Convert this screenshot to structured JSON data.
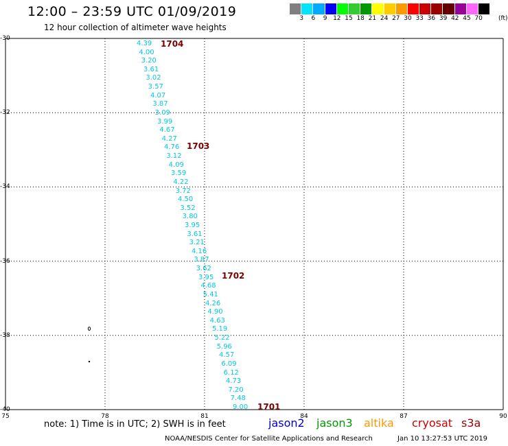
{
  "header": {
    "title": "12:00 – 23:59 UTC 01/09/2019",
    "subtitle": "12 hour collection of altimeter wave heights"
  },
  "colorbar": {
    "colors": [
      "#808080",
      "#00e5ff",
      "#00aaff",
      "#0000ff",
      "#00ff00",
      "#33cc33",
      "#009900",
      "#ffff00",
      "#ffcc00",
      "#ff9900",
      "#ff0000",
      "#cc0000",
      "#990000",
      "#660000",
      "#990099",
      "#ff66ff",
      "#000000"
    ],
    "labels": [
      "3",
      "6",
      "9",
      "12",
      "15",
      "18",
      "21",
      "24",
      "27",
      "30",
      "33",
      "36",
      "39",
      "42",
      "45",
      "70"
    ],
    "unit": "(ft)"
  },
  "axes": {
    "lat_ticks": [
      "-30",
      "-32",
      "-34",
      "-36",
      "-38",
      "-40"
    ],
    "lon_ticks": [
      "75",
      "78",
      "81",
      "84",
      "87",
      "90"
    ]
  },
  "map_data": {
    "lon_range": [
      75,
      90
    ],
    "lat_range": [
      -40,
      -30
    ],
    "swh_ft": [
      "4.39",
      "4.00",
      "3.20",
      "3.61",
      "3.02",
      "3.57",
      "4.07",
      "3.87",
      "3.09",
      "3.99",
      "4.67",
      "4.27",
      "4.76",
      "3.12",
      "4.09",
      "3.59",
      "4.22",
      "3.72",
      "4.50",
      "3.52",
      "3.80",
      "3.95",
      "3.61",
      "3.21",
      "4.16",
      "3.87",
      "3.62",
      "3.95",
      "4.68",
      "5.41",
      "4.26",
      "4.90",
      "4.63",
      "5.19",
      "5.22",
      "5.96",
      "4.57",
      "6.09",
      "6.12",
      "4.73",
      "7.20",
      "7.48",
      "9.00"
    ],
    "passes": [
      "1704",
      "1703",
      "1702",
      "1701"
    ]
  },
  "footer": {
    "note": "note:  1) Time is in UTC;  2) SWH is in feet",
    "legend": [
      {
        "name": "jason2",
        "color": "#0000cc"
      },
      {
        "name": "jason3",
        "color": "#009900"
      },
      {
        "name": "altika",
        "color": "#ff9900"
      },
      {
        "name": "cryosat",
        "color": "#cc0000"
      },
      {
        "name": "s3a",
        "color": "#990000"
      }
    ],
    "credit": "NOAA/NESDIS Center for Satellite Applications and Research",
    "timestamp": "Jan 10 13:27:53 UTC 2019"
  }
}
